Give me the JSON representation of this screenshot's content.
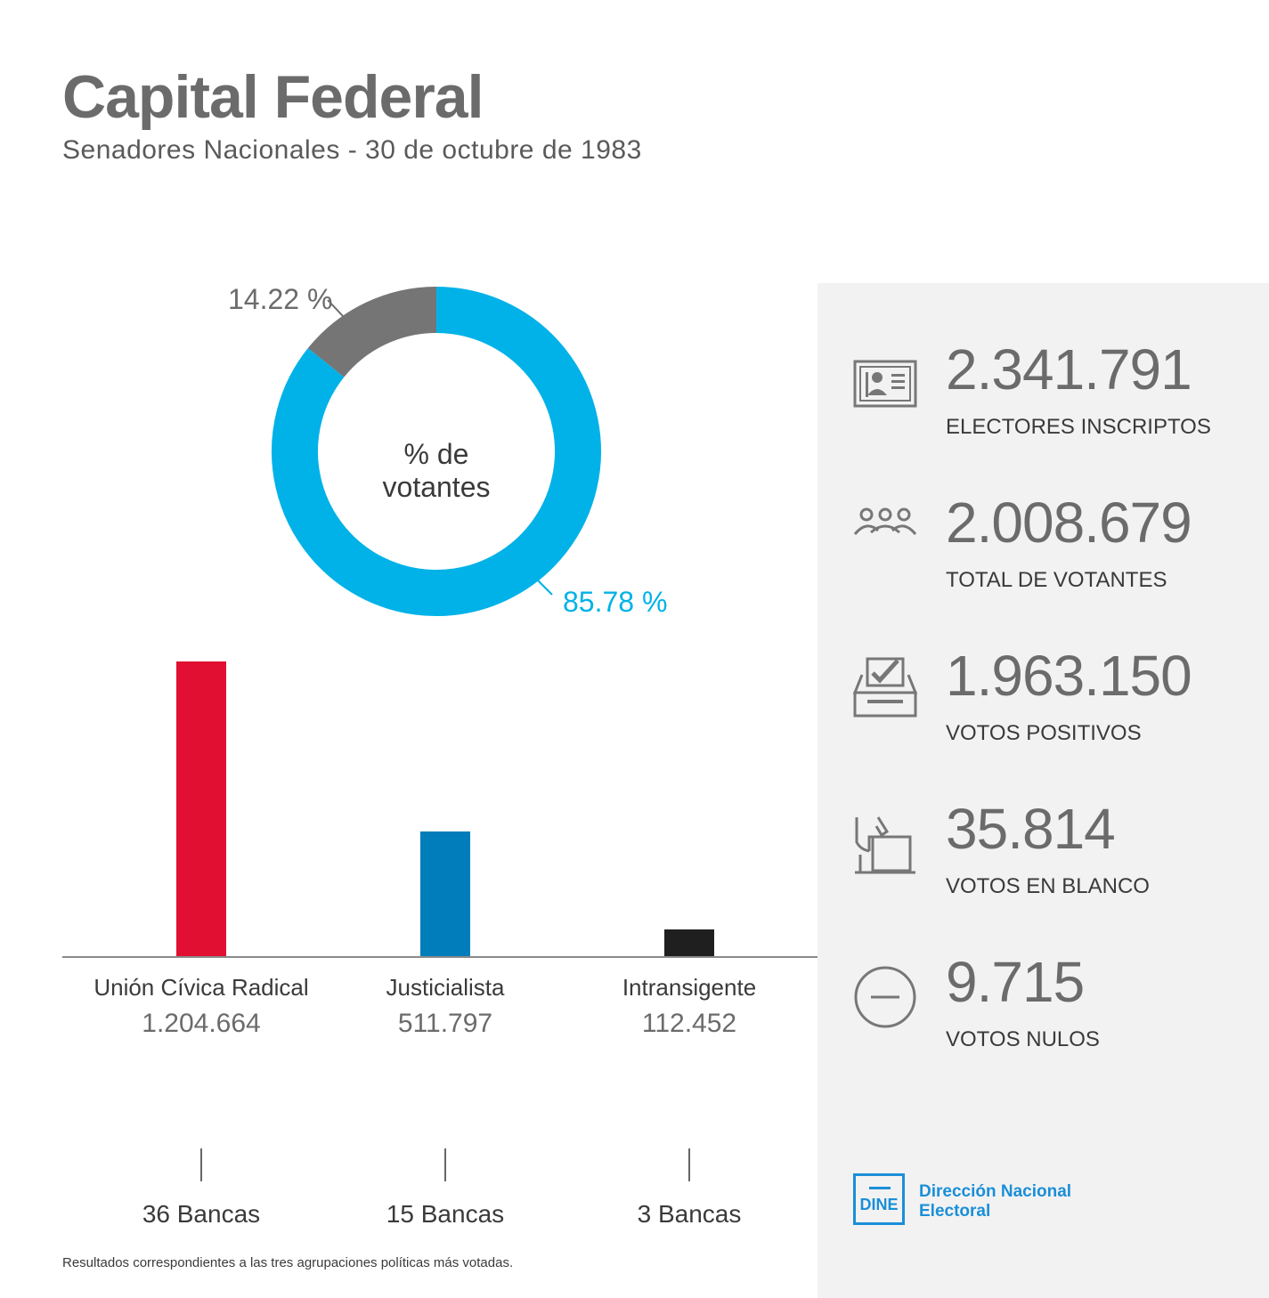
{
  "header": {
    "title": "Capital Federal",
    "subtitle": "Senadores Nacionales - 30 de octubre de 1983"
  },
  "chart_data": [
    {
      "type": "pie",
      "variant": "donut",
      "center_label": "% de votantes",
      "slices": [
        {
          "label": "85.78 %",
          "value": 85.78,
          "color": "#00b2e8"
        },
        {
          "label": "14.22 %",
          "value": 14.22,
          "color": "#757575"
        }
      ]
    },
    {
      "type": "bar",
      "categories": [
        "Unión Cívica Radical",
        "Justicialista",
        "Intransigente"
      ],
      "values": [
        1204664,
        511797,
        112452
      ],
      "value_labels": [
        "1.204.664",
        "511.797",
        "112.452"
      ],
      "colors": [
        "#e10f31",
        "#007dba",
        "#1f1f1f"
      ],
      "seats": [
        "36 Bancas",
        "15 Bancas",
        "3 Bancas"
      ]
    }
  ],
  "stats": [
    {
      "icon": "id-card-icon",
      "value": "2.341.791",
      "label": "ELECTORES INSCRIPTOS"
    },
    {
      "icon": "people-group-icon",
      "value": "2.008.679",
      "label": "TOTAL DE VOTANTES"
    },
    {
      "icon": "ballot-check-icon",
      "value": "1.963.150",
      "label": "VOTOS POSITIVOS"
    },
    {
      "icon": "hand-ballot-icon",
      "value": "35.814",
      "label": "VOTOS EN BLANCO"
    },
    {
      "icon": "minus-circle-icon",
      "value": "9.715",
      "label": "VOTOS NULOS"
    }
  ],
  "logo": {
    "mark": "DINE",
    "name": "Dirección Nacional Electoral"
  },
  "footnote": "Resultados correspondientes a las tres agrupaciones políticas más votadas.",
  "colors": {
    "accent_blue": "#00b2e8",
    "panel_bg": "#f3f2f2",
    "text_gray": "#6b6b6b"
  }
}
